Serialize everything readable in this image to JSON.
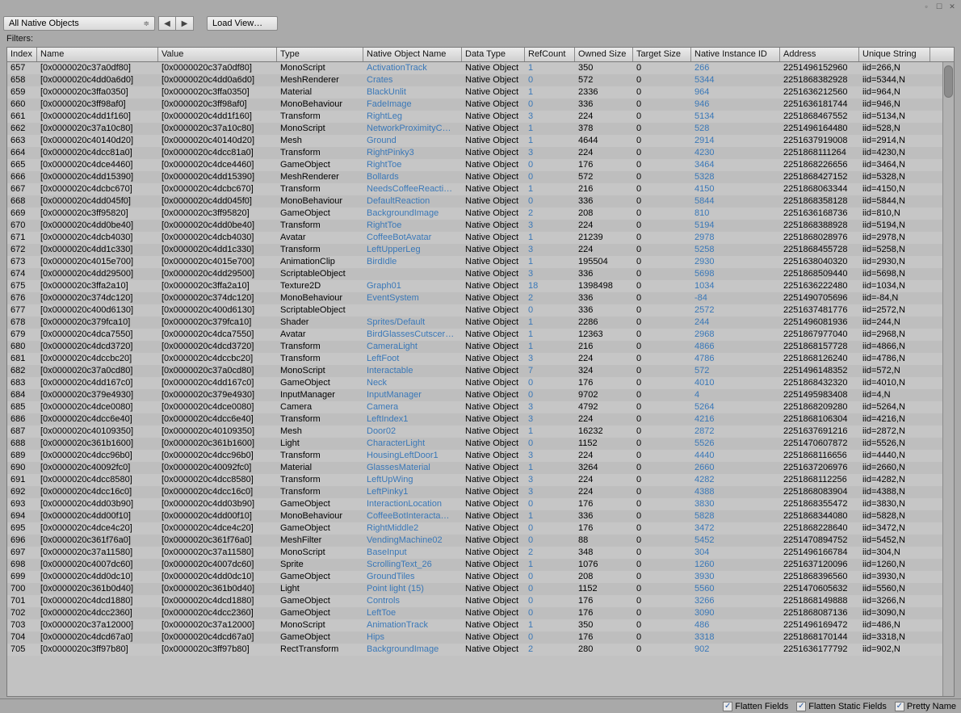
{
  "window": {
    "minimize_icon": "▫",
    "maximize_icon": "☐",
    "close_icon": "✕"
  },
  "toolbar": {
    "dropdown_label": "All Native Objects",
    "chevron": "≑",
    "nav_prev": "◀",
    "nav_next": "▶",
    "load_label": "Load View…"
  },
  "filters_label": "Filters:",
  "columns": [
    {
      "key": "index",
      "label": "Index",
      "cls": "c-index"
    },
    {
      "key": "name",
      "label": "Name",
      "cls": "c-name"
    },
    {
      "key": "value",
      "label": "Value",
      "cls": "c-value"
    },
    {
      "key": "type",
      "label": "Type",
      "cls": "c-type"
    },
    {
      "key": "non",
      "label": "Native Object Name",
      "cls": "c-non",
      "link": true
    },
    {
      "key": "dt",
      "label": "Data Type",
      "cls": "c-dt"
    },
    {
      "key": "ref",
      "label": "RefCount",
      "cls": "c-ref",
      "link": true
    },
    {
      "key": "os",
      "label": "Owned Size",
      "cls": "c-os"
    },
    {
      "key": "ts",
      "label": "Target Size",
      "cls": "c-ts"
    },
    {
      "key": "nid",
      "label": "Native Instance ID",
      "cls": "c-nid",
      "link": true
    },
    {
      "key": "addr",
      "label": "Address",
      "cls": "c-addr"
    },
    {
      "key": "uniq",
      "label": "Unique String",
      "cls": "c-uniq"
    }
  ],
  "footer": {
    "flatten_fields": "Flatten Fields",
    "flatten_static": "Flatten Static Fields",
    "pretty_name": "Pretty Name",
    "checked": "✓"
  },
  "rows": [
    {
      "index": 657,
      "name": "[0x0000020c37a0df80]",
      "value": "[0x0000020c37a0df80]",
      "type": "MonoScript",
      "non": "ActivationTrack",
      "dt": "Native Object",
      "ref": 1,
      "os": 350,
      "ts": 0,
      "nid": 266,
      "addr": "2251496152960",
      "uniq": "iid=266,N"
    },
    {
      "index": 658,
      "name": "[0x0000020c4dd0a6d0]",
      "value": "[0x0000020c4dd0a6d0]",
      "type": "MeshRenderer",
      "non": "Crates",
      "dt": "Native Object",
      "ref": 0,
      "os": 572,
      "ts": 0,
      "nid": 5344,
      "addr": "2251868382928",
      "uniq": "iid=5344,N"
    },
    {
      "index": 659,
      "name": "[0x0000020c3ffa0350]",
      "value": "[0x0000020c3ffa0350]",
      "type": "Material",
      "non": "BlackUnlit",
      "dt": "Native Object",
      "ref": 1,
      "os": 2336,
      "ts": 0,
      "nid": 964,
      "addr": "2251636212560",
      "uniq": "iid=964,N"
    },
    {
      "index": 660,
      "name": "[0x0000020c3ff98af0]",
      "value": "[0x0000020c3ff98af0]",
      "type": "MonoBehaviour",
      "non": "FadeImage",
      "dt": "Native Object",
      "ref": 0,
      "os": 336,
      "ts": 0,
      "nid": 946,
      "addr": "2251636181744",
      "uniq": "iid=946,N"
    },
    {
      "index": 661,
      "name": "[0x0000020c4dd1f160]",
      "value": "[0x0000020c4dd1f160]",
      "type": "Transform",
      "non": "RightLeg",
      "dt": "Native Object",
      "ref": 3,
      "os": 224,
      "ts": 0,
      "nid": 5134,
      "addr": "2251868467552",
      "uniq": "iid=5134,N"
    },
    {
      "index": 662,
      "name": "[0x0000020c37a10c80]",
      "value": "[0x0000020c37a10c80]",
      "type": "MonoScript",
      "non": "NetworkProximityC…",
      "dt": "Native Object",
      "ref": 1,
      "os": 378,
      "ts": 0,
      "nid": 528,
      "addr": "2251496164480",
      "uniq": "iid=528,N"
    },
    {
      "index": 663,
      "name": "[0x0000020c40140d20]",
      "value": "[0x0000020c40140d20]",
      "type": "Mesh",
      "non": "Ground",
      "dt": "Native Object",
      "ref": 1,
      "os": 4644,
      "ts": 0,
      "nid": 2914,
      "addr": "2251637919008",
      "uniq": "iid=2914,N"
    },
    {
      "index": 664,
      "name": "[0x0000020c4dcc81a0]",
      "value": "[0x0000020c4dcc81a0]",
      "type": "Transform",
      "non": "RightPinky3",
      "dt": "Native Object",
      "ref": 3,
      "os": 224,
      "ts": 0,
      "nid": 4230,
      "addr": "2251868111264",
      "uniq": "iid=4230,N"
    },
    {
      "index": 665,
      "name": "[0x0000020c4dce4460]",
      "value": "[0x0000020c4dce4460]",
      "type": "GameObject",
      "non": "RightToe",
      "dt": "Native Object",
      "ref": 0,
      "os": 176,
      "ts": 0,
      "nid": 3464,
      "addr": "2251868226656",
      "uniq": "iid=3464,N"
    },
    {
      "index": 666,
      "name": "[0x0000020c4dd15390]",
      "value": "[0x0000020c4dd15390]",
      "type": "MeshRenderer",
      "non": "Bollards",
      "dt": "Native Object",
      "ref": 0,
      "os": 572,
      "ts": 0,
      "nid": 5328,
      "addr": "2251868427152",
      "uniq": "iid=5328,N"
    },
    {
      "index": 667,
      "name": "[0x0000020c4dcbc670]",
      "value": "[0x0000020c4dcbc670]",
      "type": "Transform",
      "non": "NeedsCoffeeReacti…",
      "dt": "Native Object",
      "ref": 1,
      "os": 216,
      "ts": 0,
      "nid": 4150,
      "addr": "2251868063344",
      "uniq": "iid=4150,N"
    },
    {
      "index": 668,
      "name": "[0x0000020c4dd045f0]",
      "value": "[0x0000020c4dd045f0]",
      "type": "MonoBehaviour",
      "non": "DefaultReaction",
      "dt": "Native Object",
      "ref": 0,
      "os": 336,
      "ts": 0,
      "nid": 5844,
      "addr": "2251868358128",
      "uniq": "iid=5844,N"
    },
    {
      "index": 669,
      "name": "[0x0000020c3ff95820]",
      "value": "[0x0000020c3ff95820]",
      "type": "GameObject",
      "non": "BackgroundImage",
      "dt": "Native Object",
      "ref": 2,
      "os": 208,
      "ts": 0,
      "nid": 810,
      "addr": "2251636168736",
      "uniq": "iid=810,N"
    },
    {
      "index": 670,
      "name": "[0x0000020c4dd0be40]",
      "value": "[0x0000020c4dd0be40]",
      "type": "Transform",
      "non": "RightToe",
      "dt": "Native Object",
      "ref": 3,
      "os": 224,
      "ts": 0,
      "nid": 5194,
      "addr": "2251868388928",
      "uniq": "iid=5194,N"
    },
    {
      "index": 671,
      "name": "[0x0000020c4dcb4030]",
      "value": "[0x0000020c4dcb4030]",
      "type": "Avatar",
      "non": "CoffeeBotAvatar",
      "dt": "Native Object",
      "ref": 1,
      "os": 21239,
      "ts": 0,
      "nid": 2978,
      "addr": "2251868028976",
      "uniq": "iid=2978,N"
    },
    {
      "index": 672,
      "name": "[0x0000020c4dd1c330]",
      "value": "[0x0000020c4dd1c330]",
      "type": "Transform",
      "non": "LeftUpperLeg",
      "dt": "Native Object",
      "ref": 3,
      "os": 224,
      "ts": 0,
      "nid": 5258,
      "addr": "2251868455728",
      "uniq": "iid=5258,N"
    },
    {
      "index": 673,
      "name": "[0x0000020c4015e700]",
      "value": "[0x0000020c4015e700]",
      "type": "AnimationClip",
      "non": "BirdIdle",
      "dt": "Native Object",
      "ref": 1,
      "os": 195504,
      "ts": 0,
      "nid": 2930,
      "addr": "2251638040320",
      "uniq": "iid=2930,N"
    },
    {
      "index": 674,
      "name": "[0x0000020c4dd29500]",
      "value": "[0x0000020c4dd29500]",
      "type": "ScriptableObject",
      "non": "",
      "dt": "Native Object",
      "ref": 3,
      "os": 336,
      "ts": 0,
      "nid": 5698,
      "addr": "2251868509440",
      "uniq": "iid=5698,N"
    },
    {
      "index": 675,
      "name": "[0x0000020c3ffa2a10]",
      "value": "[0x0000020c3ffa2a10]",
      "type": "Texture2D",
      "non": "Graph01",
      "dt": "Native Object",
      "ref": 18,
      "os": 1398498,
      "ts": 0,
      "nid": 1034,
      "addr": "2251636222480",
      "uniq": "iid=1034,N"
    },
    {
      "index": 676,
      "name": "[0x0000020c374dc120]",
      "value": "[0x0000020c374dc120]",
      "type": "MonoBehaviour",
      "non": "EventSystem",
      "dt": "Native Object",
      "ref": 2,
      "os": 336,
      "ts": 0,
      "nid": -84,
      "addr": "2251490705696",
      "uniq": "iid=-84,N"
    },
    {
      "index": 677,
      "name": "[0x0000020c400d6130]",
      "value": "[0x0000020c400d6130]",
      "type": "ScriptableObject",
      "non": "",
      "dt": "Native Object",
      "ref": 0,
      "os": 336,
      "ts": 0,
      "nid": 2572,
      "addr": "2251637481776",
      "uniq": "iid=2572,N"
    },
    {
      "index": 678,
      "name": "[0x0000020c379fca10]",
      "value": "[0x0000020c379fca10]",
      "type": "Shader",
      "non": "Sprites/Default",
      "dt": "Native Object",
      "ref": 1,
      "os": 2286,
      "ts": 0,
      "nid": 244,
      "addr": "2251496081936",
      "uniq": "iid=244,N"
    },
    {
      "index": 679,
      "name": "[0x0000020c4dca7550]",
      "value": "[0x0000020c4dca7550]",
      "type": "Avatar",
      "non": "BirdGlassesCutscer…",
      "dt": "Native Object",
      "ref": 1,
      "os": 12363,
      "ts": 0,
      "nid": 2968,
      "addr": "2251867977040",
      "uniq": "iid=2968,N"
    },
    {
      "index": 680,
      "name": "[0x0000020c4dcd3720]",
      "value": "[0x0000020c4dcd3720]",
      "type": "Transform",
      "non": "CameraLight",
      "dt": "Native Object",
      "ref": 1,
      "os": 216,
      "ts": 0,
      "nid": 4866,
      "addr": "2251868157728",
      "uniq": "iid=4866,N"
    },
    {
      "index": 681,
      "name": "[0x0000020c4dccbc20]",
      "value": "[0x0000020c4dccbc20]",
      "type": "Transform",
      "non": "LeftFoot",
      "dt": "Native Object",
      "ref": 3,
      "os": 224,
      "ts": 0,
      "nid": 4786,
      "addr": "2251868126240",
      "uniq": "iid=4786,N"
    },
    {
      "index": 682,
      "name": "[0x0000020c37a0cd80]",
      "value": "[0x0000020c37a0cd80]",
      "type": "MonoScript",
      "non": "Interactable",
      "dt": "Native Object",
      "ref": 7,
      "os": 324,
      "ts": 0,
      "nid": 572,
      "addr": "2251496148352",
      "uniq": "iid=572,N"
    },
    {
      "index": 683,
      "name": "[0x0000020c4dd167c0]",
      "value": "[0x0000020c4dd167c0]",
      "type": "GameObject",
      "non": "Neck",
      "dt": "Native Object",
      "ref": 0,
      "os": 176,
      "ts": 0,
      "nid": 4010,
      "addr": "2251868432320",
      "uniq": "iid=4010,N"
    },
    {
      "index": 684,
      "name": "[0x0000020c379e4930]",
      "value": "[0x0000020c379e4930]",
      "type": "InputManager",
      "non": "InputManager",
      "dt": "Native Object",
      "ref": 0,
      "os": 9702,
      "ts": 0,
      "nid": 4,
      "addr": "2251495983408",
      "uniq": "iid=4,N"
    },
    {
      "index": 685,
      "name": "[0x0000020c4dce0080]",
      "value": "[0x0000020c4dce0080]",
      "type": "Camera",
      "non": "Camera",
      "dt": "Native Object",
      "ref": 3,
      "os": 4792,
      "ts": 0,
      "nid": 5264,
      "addr": "2251868209280",
      "uniq": "iid=5264,N"
    },
    {
      "index": 686,
      "name": "[0x0000020c4dcc6e40]",
      "value": "[0x0000020c4dcc6e40]",
      "type": "Transform",
      "non": "LeftIndex1",
      "dt": "Native Object",
      "ref": 3,
      "os": 224,
      "ts": 0,
      "nid": 4216,
      "addr": "2251868106304",
      "uniq": "iid=4216,N"
    },
    {
      "index": 687,
      "name": "[0x0000020c40109350]",
      "value": "[0x0000020c40109350]",
      "type": "Mesh",
      "non": "Door02",
      "dt": "Native Object",
      "ref": 1,
      "os": 16232,
      "ts": 0,
      "nid": 2872,
      "addr": "2251637691216",
      "uniq": "iid=2872,N"
    },
    {
      "index": 688,
      "name": "[0x0000020c361b1600]",
      "value": "[0x0000020c361b1600]",
      "type": "Light",
      "non": "CharacterLight",
      "dt": "Native Object",
      "ref": 0,
      "os": 1152,
      "ts": 0,
      "nid": 5526,
      "addr": "2251470607872",
      "uniq": "iid=5526,N"
    },
    {
      "index": 689,
      "name": "[0x0000020c4dcc96b0]",
      "value": "[0x0000020c4dcc96b0]",
      "type": "Transform",
      "non": "HousingLeftDoor1",
      "dt": "Native Object",
      "ref": 3,
      "os": 224,
      "ts": 0,
      "nid": 4440,
      "addr": "2251868116656",
      "uniq": "iid=4440,N"
    },
    {
      "index": 690,
      "name": "[0x0000020c40092fc0]",
      "value": "[0x0000020c40092fc0]",
      "type": "Material",
      "non": "GlassesMaterial",
      "dt": "Native Object",
      "ref": 1,
      "os": 3264,
      "ts": 0,
      "nid": 2660,
      "addr": "2251637206976",
      "uniq": "iid=2660,N"
    },
    {
      "index": 691,
      "name": "[0x0000020c4dcc8580]",
      "value": "[0x0000020c4dcc8580]",
      "type": "Transform",
      "non": "LeftUpWing",
      "dt": "Native Object",
      "ref": 3,
      "os": 224,
      "ts": 0,
      "nid": 4282,
      "addr": "2251868112256",
      "uniq": "iid=4282,N"
    },
    {
      "index": 692,
      "name": "[0x0000020c4dcc16c0]",
      "value": "[0x0000020c4dcc16c0]",
      "type": "Transform",
      "non": "LeftPinky1",
      "dt": "Native Object",
      "ref": 3,
      "os": 224,
      "ts": 0,
      "nid": 4388,
      "addr": "2251868083904",
      "uniq": "iid=4388,N"
    },
    {
      "index": 693,
      "name": "[0x0000020c4dd03b90]",
      "value": "[0x0000020c4dd03b90]",
      "type": "GameObject",
      "non": "InteractionLocation",
      "dt": "Native Object",
      "ref": 0,
      "os": 176,
      "ts": 0,
      "nid": 3830,
      "addr": "2251868355472",
      "uniq": "iid=3830,N"
    },
    {
      "index": 694,
      "name": "[0x0000020c4dd00f10]",
      "value": "[0x0000020c4dd00f10]",
      "type": "MonoBehaviour",
      "non": "CoffeeBotInteracta…",
      "dt": "Native Object",
      "ref": 1,
      "os": 336,
      "ts": 0,
      "nid": 5828,
      "addr": "2251868344080",
      "uniq": "iid=5828,N"
    },
    {
      "index": 695,
      "name": "[0x0000020c4dce4c20]",
      "value": "[0x0000020c4dce4c20]",
      "type": "GameObject",
      "non": "RightMiddle2",
      "dt": "Native Object",
      "ref": 0,
      "os": 176,
      "ts": 0,
      "nid": 3472,
      "addr": "2251868228640",
      "uniq": "iid=3472,N"
    },
    {
      "index": 696,
      "name": "[0x0000020c361f76a0]",
      "value": "[0x0000020c361f76a0]",
      "type": "MeshFilter",
      "non": "VendingMachine02",
      "dt": "Native Object",
      "ref": 0,
      "os": 88,
      "ts": 0,
      "nid": 5452,
      "addr": "2251470894752",
      "uniq": "iid=5452,N"
    },
    {
      "index": 697,
      "name": "[0x0000020c37a11580]",
      "value": "[0x0000020c37a11580]",
      "type": "MonoScript",
      "non": "BaseInput",
      "dt": "Native Object",
      "ref": 2,
      "os": 348,
      "ts": 0,
      "nid": 304,
      "addr": "2251496166784",
      "uniq": "iid=304,N"
    },
    {
      "index": 698,
      "name": "[0x0000020c4007dc60]",
      "value": "[0x0000020c4007dc60]",
      "type": "Sprite",
      "non": "ScrollingText_26",
      "dt": "Native Object",
      "ref": 1,
      "os": 1076,
      "ts": 0,
      "nid": 1260,
      "addr": "2251637120096",
      "uniq": "iid=1260,N"
    },
    {
      "index": 699,
      "name": "[0x0000020c4dd0dc10]",
      "value": "[0x0000020c4dd0dc10]",
      "type": "GameObject",
      "non": "GroundTiles",
      "dt": "Native Object",
      "ref": 0,
      "os": 208,
      "ts": 0,
      "nid": 3930,
      "addr": "2251868396560",
      "uniq": "iid=3930,N"
    },
    {
      "index": 700,
      "name": "[0x0000020c361b0d40]",
      "value": "[0x0000020c361b0d40]",
      "type": "Light",
      "non": "Point light (15)",
      "dt": "Native Object",
      "ref": 0,
      "os": 1152,
      "ts": 0,
      "nid": 5560,
      "addr": "2251470605632",
      "uniq": "iid=5560,N"
    },
    {
      "index": 701,
      "name": "[0x0000020c4dcd1880]",
      "value": "[0x0000020c4dcd1880]",
      "type": "GameObject",
      "non": "Controls",
      "dt": "Native Object",
      "ref": 0,
      "os": 176,
      "ts": 0,
      "nid": 3266,
      "addr": "2251868149888",
      "uniq": "iid=3266,N"
    },
    {
      "index": 702,
      "name": "[0x0000020c4dcc2360]",
      "value": "[0x0000020c4dcc2360]",
      "type": "GameObject",
      "non": "LeftToe",
      "dt": "Native Object",
      "ref": 0,
      "os": 176,
      "ts": 0,
      "nid": 3090,
      "addr": "2251868087136",
      "uniq": "iid=3090,N"
    },
    {
      "index": 703,
      "name": "[0x0000020c37a12000]",
      "value": "[0x0000020c37a12000]",
      "type": "MonoScript",
      "non": "AnimationTrack",
      "dt": "Native Object",
      "ref": 1,
      "os": 350,
      "ts": 0,
      "nid": 486,
      "addr": "2251496169472",
      "uniq": "iid=486,N"
    },
    {
      "index": 704,
      "name": "[0x0000020c4dcd67a0]",
      "value": "[0x0000020c4dcd67a0]",
      "type": "GameObject",
      "non": "Hips",
      "dt": "Native Object",
      "ref": 0,
      "os": 176,
      "ts": 0,
      "nid": 3318,
      "addr": "2251868170144",
      "uniq": "iid=3318,N"
    },
    {
      "index": 705,
      "name": "[0x0000020c3ff97b80]",
      "value": "[0x0000020c3ff97b80]",
      "type": "RectTransform",
      "non": "BackgroundImage",
      "dt": "Native Object",
      "ref": 2,
      "os": 280,
      "ts": 0,
      "nid": 902,
      "addr": "2251636177792",
      "uniq": "iid=902,N"
    }
  ]
}
